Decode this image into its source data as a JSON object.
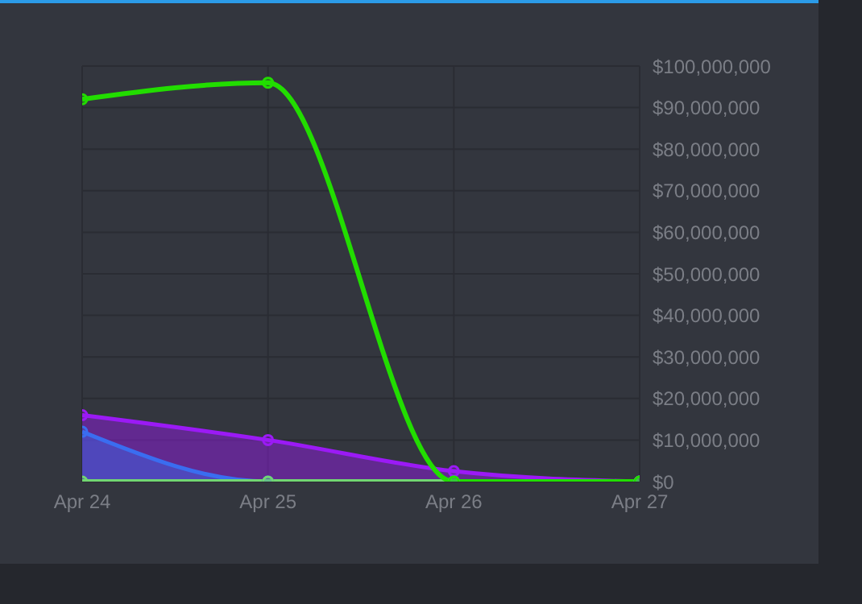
{
  "chart_data": {
    "type": "line",
    "x": [
      "--04-24",
      "--04-25",
      "--04-26",
      "--04-27"
    ],
    "series": [
      {
        "type": "area",
        "color": "#9b1af5",
        "values": [
          16000000,
          10000000,
          2500000,
          0
        ]
      },
      {
        "type": "area",
        "color": "#3a6df0",
        "values": [
          12000000,
          0,
          0,
          0
        ]
      },
      {
        "color": "#72d672",
        "values": [
          0,
          0,
          0,
          0
        ]
      },
      {
        "color": "#22dd00",
        "values": [
          92000000,
          96000000,
          0,
          0
        ]
      }
    ],
    "xlim": [
      "--04-24",
      "--04-27"
    ],
    "xticks": [
      {
        "value": "--04-24",
        "label": "Apr 24"
      },
      {
        "value": "--04-25",
        "label": "Apr 25"
      },
      {
        "value": "--04-26",
        "label": "Apr 26"
      },
      {
        "value": "--04-27",
        "label": "Apr 27"
      }
    ],
    "ylim": [
      0,
      100000000
    ],
    "yticks": [
      {
        "value": 0,
        "label": "$0"
      },
      {
        "value": 10000000,
        "label": "$10,000,000"
      },
      {
        "value": 20000000,
        "label": "$20,000,000"
      },
      {
        "value": 30000000,
        "label": "$30,000,000"
      },
      {
        "value": 40000000,
        "label": "$40,000,000"
      },
      {
        "value": 50000000,
        "label": "$50,000,000"
      },
      {
        "value": 60000000,
        "label": "$60,000,000"
      },
      {
        "value": 70000000,
        "label": "$70,000,000"
      },
      {
        "value": 80000000,
        "label": "$80,000,000"
      },
      {
        "value": 90000000,
        "label": "$90,000,000"
      },
      {
        "value": 100000000,
        "label": "$100,000,000"
      }
    ],
    "grid": true,
    "marker": "circle",
    "line_style": "solid"
  }
}
